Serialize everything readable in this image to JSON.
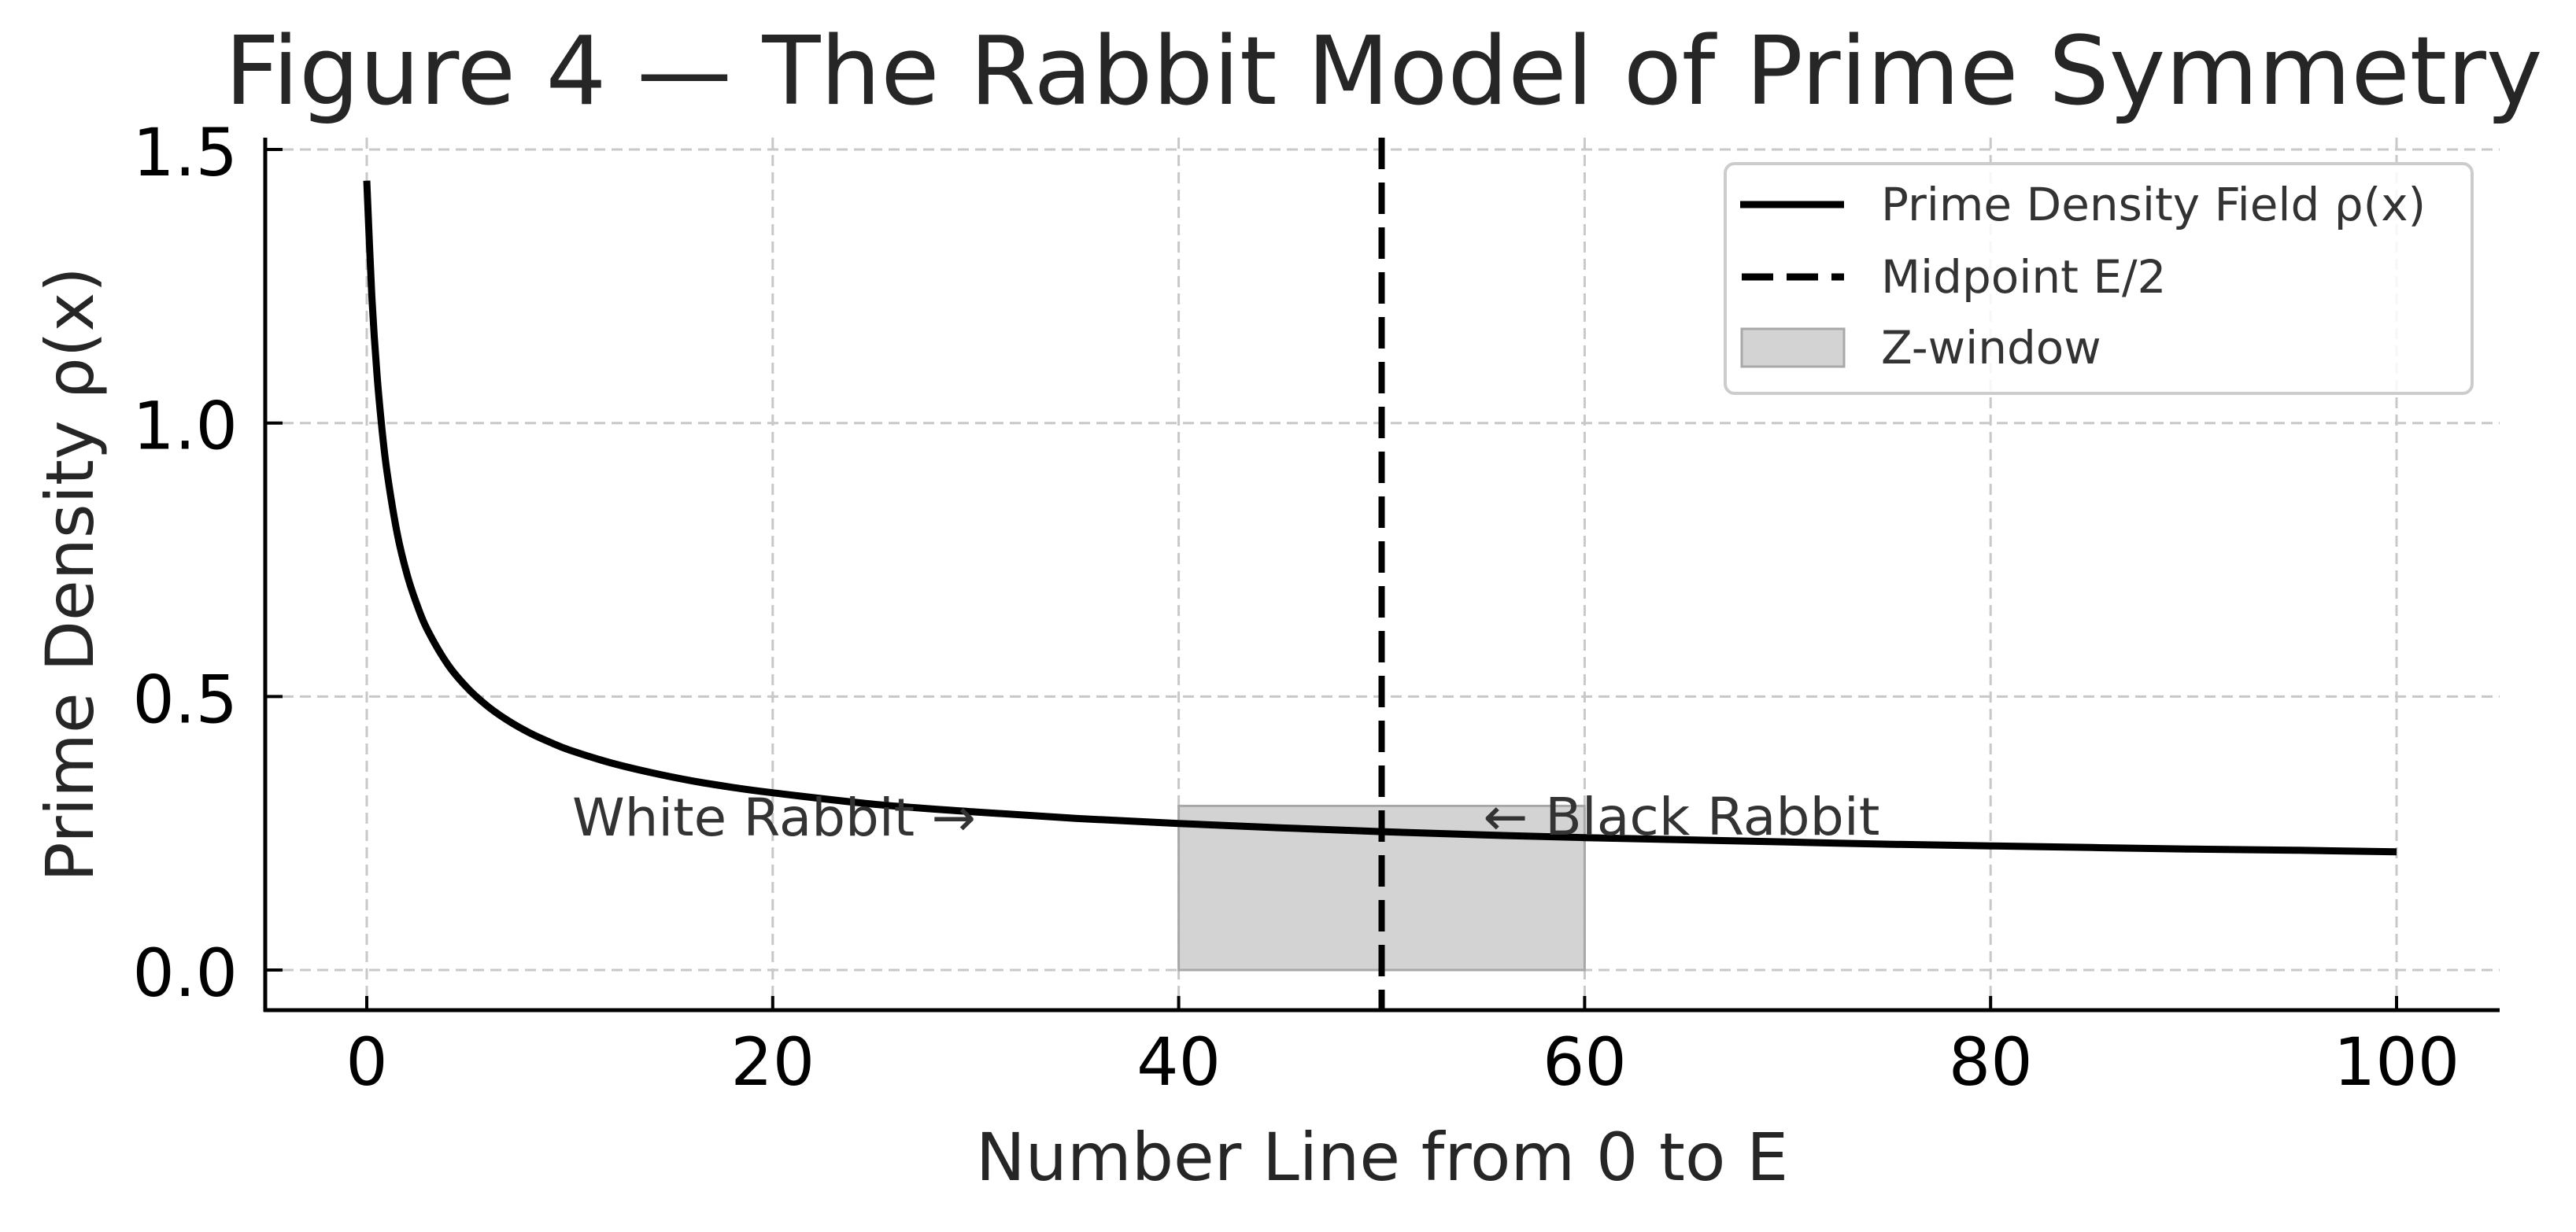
{
  "figure": {
    "title": "Figure 4 — The Rabbit Model of Prime Symmetry"
  },
  "axes": {
    "xlabel": "Number Line from 0 to E",
    "ylabel": "Prime Density ρ(x)",
    "xticks": [
      "0",
      "20",
      "40",
      "60",
      "80",
      "100"
    ],
    "yticks": [
      "0.0",
      "0.5",
      "1.0",
      "1.5"
    ]
  },
  "annotations": {
    "white_rabbit": "White Rabbit →",
    "black_rabbit": "← Black Rabbit"
  },
  "legend": {
    "items": [
      {
        "label": "Prime Density Field ρ(x)",
        "style": "solid-line"
      },
      {
        "label": "Midpoint E/2",
        "style": "dashed-line"
      },
      {
        "label": "Z-window",
        "style": "filled-patch"
      }
    ]
  },
  "colors": {
    "curve": "#000000",
    "midpoint": "#000000",
    "z_window_fill": "#c8c8c8",
    "grid": "#c8c8c8",
    "text": "#262626"
  },
  "chart_data": {
    "type": "line",
    "title": "Figure 4 — The Rabbit Model of Prime Symmetry",
    "xlabel": "Number Line from 0 to E",
    "ylabel": "Prime Density ρ(x)",
    "xlim": [
      -5,
      105
    ],
    "ylim": [
      -0.07,
      1.55
    ],
    "xticks": [
      0,
      20,
      40,
      60,
      80,
      100
    ],
    "yticks": [
      0.0,
      0.5,
      1.0,
      1.5
    ],
    "grid": true,
    "legend_position": "upper right",
    "series": [
      {
        "name": "Prime Density Field ρ(x)",
        "style": "solid",
        "color": "#000000",
        "x": [
          0,
          0.25,
          0.5,
          0.75,
          1,
          1.5,
          2,
          2.5,
          3,
          4,
          5,
          6,
          7,
          8,
          9,
          10,
          12,
          14,
          16,
          18,
          20,
          25,
          30,
          35,
          40,
          45,
          50,
          55,
          60,
          65,
          70,
          75,
          80,
          85,
          90,
          95,
          100
        ],
        "values": [
          1.443,
          1.233,
          1.091,
          0.989,
          0.91,
          0.798,
          0.721,
          0.665,
          0.621,
          0.558,
          0.514,
          0.481,
          0.455,
          0.434,
          0.417,
          0.402,
          0.379,
          0.361,
          0.346,
          0.334,
          0.324,
          0.303,
          0.289,
          0.277,
          0.268,
          0.26,
          0.253,
          0.247,
          0.242,
          0.238,
          0.234,
          0.23,
          0.227,
          0.224,
          0.221,
          0.219,
          0.216
        ]
      }
    ],
    "vlines": [
      {
        "name": "Midpoint E/2",
        "x": 50,
        "style": "dashed",
        "color": "#000000"
      }
    ],
    "spans": [
      {
        "name": "Z-window",
        "x0": 40,
        "x1": 60,
        "y0": 0.0,
        "y1": 0.3,
        "color": "#c8c8c8"
      }
    ],
    "annotations": [
      {
        "text": "White Rabbit →",
        "x": 10,
        "y": 0.25
      },
      {
        "text": "← Black Rabbit",
        "x": 55,
        "y": 0.25
      }
    ]
  }
}
